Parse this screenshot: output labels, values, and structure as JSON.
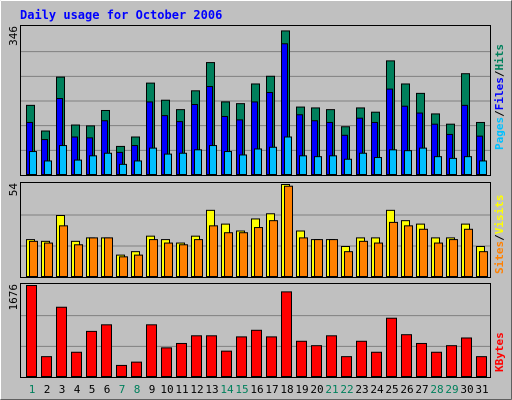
{
  "chart_data": [
    {
      "type": "bar",
      "title": "Daily usage for October 2006",
      "categories": [
        "1",
        "2",
        "3",
        "4",
        "5",
        "6",
        "7",
        "8",
        "9",
        "10",
        "11",
        "12",
        "13",
        "14",
        "15",
        "16",
        "17",
        "18",
        "19",
        "20",
        "21",
        "22",
        "23",
        "24",
        "25",
        "26",
        "27",
        "28",
        "29",
        "30",
        "31"
      ],
      "weekend_days": [
        "1",
        "7",
        "8",
        "14",
        "15",
        "21",
        "22",
        "28",
        "29"
      ],
      "ymax_label": "346",
      "ylim": [
        0,
        346
      ],
      "series": [
        {
          "name": "Hits",
          "values": [
            164,
            104,
            230,
            118,
            116,
            152,
            68,
            90,
            216,
            176,
            154,
            198,
            264,
            172,
            168,
            214,
            232,
            338,
            160,
            158,
            154,
            114,
            158,
            148,
            268,
            214,
            192,
            144,
            120,
            238,
            124
          ]
        },
        {
          "name": "Files",
          "values": [
            124,
            84,
            180,
            90,
            88,
            128,
            54,
            70,
            172,
            140,
            126,
            166,
            208,
            138,
            130,
            172,
            194,
            308,
            142,
            128,
            124,
            94,
            134,
            124,
            202,
            162,
            146,
            120,
            96,
            164,
            92
          ]
        },
        {
          "name": "Pages",
          "values": [
            56,
            34,
            70,
            36,
            46,
            52,
            26,
            34,
            64,
            50,
            52,
            60,
            70,
            56,
            48,
            62,
            66,
            90,
            46,
            44,
            46,
            38,
            52,
            42,
            60,
            58,
            64,
            44,
            40,
            44,
            34
          ]
        }
      ],
      "legend_right": {
        "items": [
          "Pages",
          "Files",
          "Hits"
        ],
        "separator": "/"
      }
    },
    {
      "type": "bar",
      "categories": [
        "1",
        "2",
        "3",
        "4",
        "5",
        "6",
        "7",
        "8",
        "9",
        "10",
        "11",
        "12",
        "13",
        "14",
        "15",
        "16",
        "17",
        "18",
        "19",
        "20",
        "21",
        "22",
        "23",
        "24",
        "25",
        "26",
        "27",
        "28",
        "29",
        "30",
        "31"
      ],
      "ymax_label": "54",
      "ylim": [
        0,
        54
      ],
      "series": [
        {
          "name": "Visits",
          "values": [
            22,
            21,
            36,
            21,
            23,
            23,
            13,
            15,
            24,
            22,
            20,
            24,
            39,
            31,
            27,
            34,
            37,
            54,
            27,
            22,
            22,
            18,
            23,
            23,
            39,
            33,
            31,
            23,
            23,
            31,
            18
          ]
        },
        {
          "name": "Sites",
          "values": [
            21,
            20,
            30,
            19,
            23,
            23,
            12,
            13,
            22,
            20,
            19,
            22,
            30,
            26,
            26,
            29,
            33,
            53,
            23,
            22,
            22,
            15,
            21,
            20,
            32,
            30,
            28,
            20,
            22,
            28,
            15
          ]
        }
      ],
      "legend_right": {
        "items": [
          "Sites",
          "Visits"
        ],
        "separator": "/"
      }
    },
    {
      "type": "bar",
      "categories": [
        "1",
        "2",
        "3",
        "4",
        "5",
        "6",
        "7",
        "8",
        "9",
        "10",
        "11",
        "12",
        "13",
        "14",
        "15",
        "16",
        "17",
        "18",
        "19",
        "20",
        "21",
        "22",
        "23",
        "24",
        "25",
        "26",
        "27",
        "28",
        "29",
        "30",
        "31"
      ],
      "ymax_label": "1676",
      "ylim": [
        0,
        1676
      ],
      "series": [
        {
          "name": "KBytes",
          "values": [
            1676,
            380,
            1280,
            460,
            840,
            960,
            220,
            280,
            960,
            540,
            620,
            760,
            760,
            480,
            740,
            860,
            740,
            1560,
            660,
            580,
            760,
            380,
            660,
            460,
            1080,
            780,
            620,
            460,
            580,
            720,
            380
          ]
        }
      ],
      "legend_right": {
        "items": [
          "KBytes"
        ],
        "separator": "/"
      }
    }
  ],
  "colors": {
    "background": "#c0c0c0",
    "panel": "#c0c0c0",
    "title": "#0000ff",
    "hits": "#00805c",
    "files": "#0000ff",
    "pages": "#00c0ff",
    "visits": "#ffff00",
    "sites": "#ff8000",
    "kbytes": "#ff0000",
    "weekday_label": "#000000",
    "weekend_label": "#00805c",
    "grid": "#808080"
  }
}
